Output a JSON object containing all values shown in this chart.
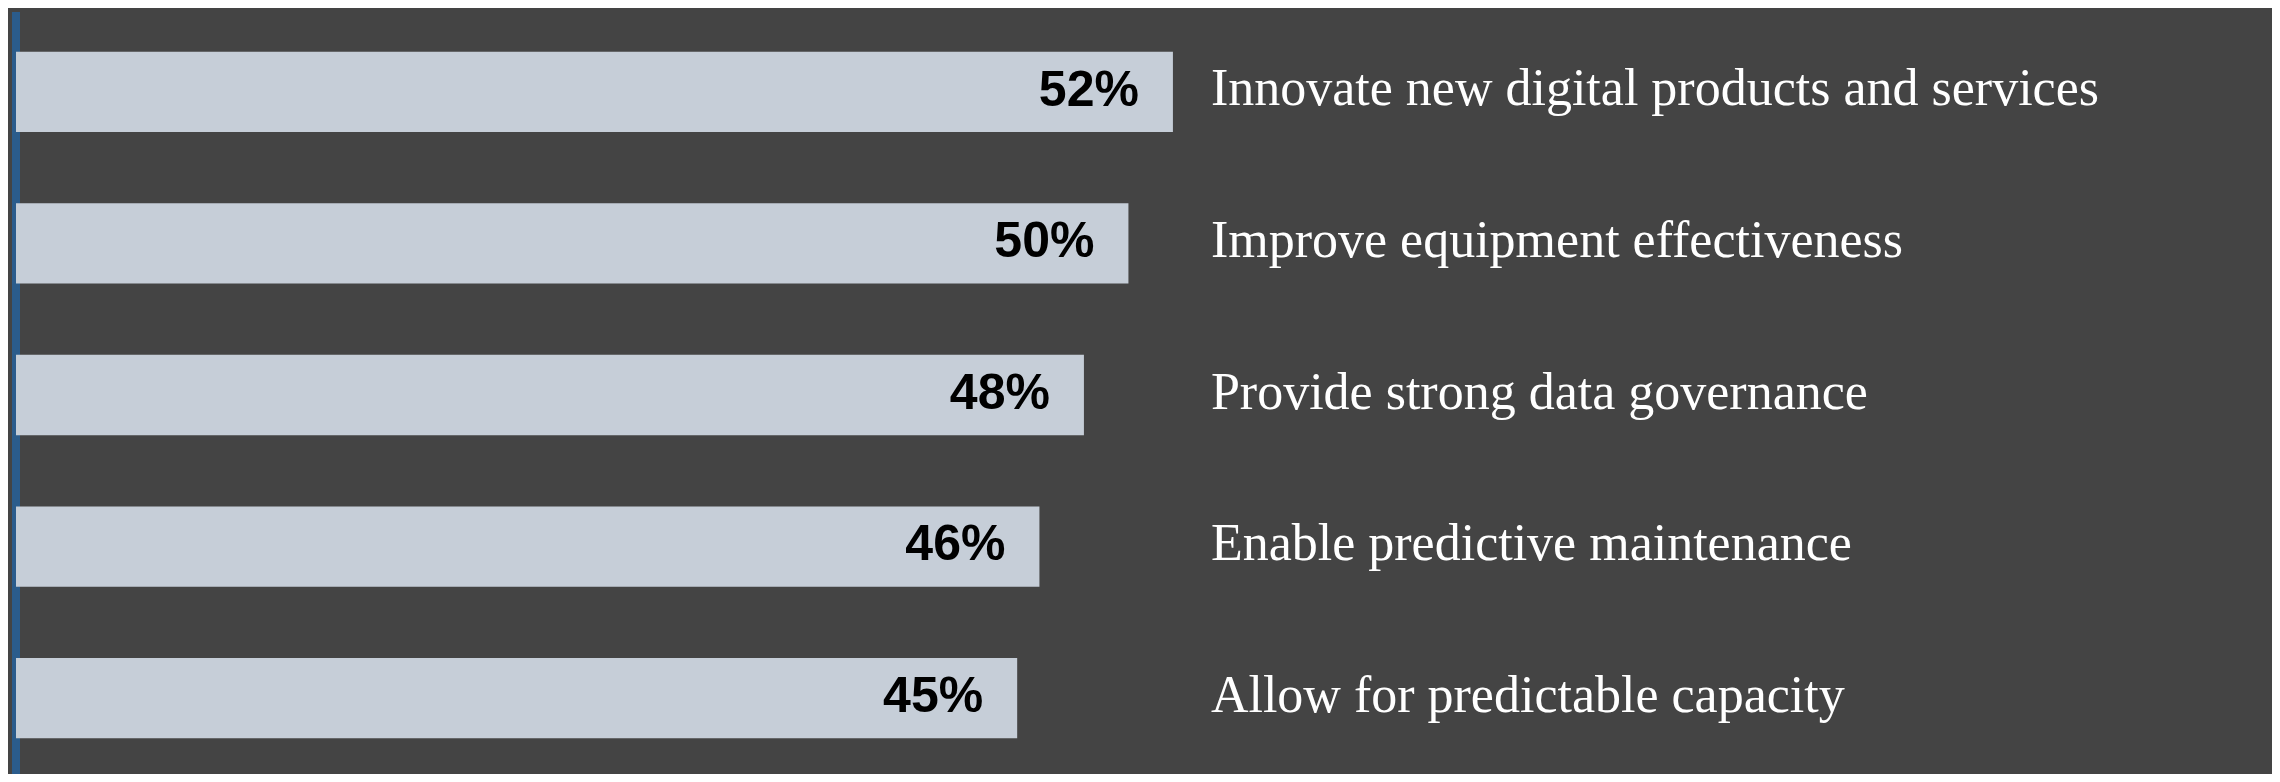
{
  "chart_data": {
    "type": "bar",
    "orientation": "horizontal",
    "categories": [
      "Innovate new digital products and services",
      "Improve equipment effectiveness",
      "Provide strong data governance",
      "Enable predictive maintenance",
      "Allow for predictable capacity"
    ],
    "values": [
      52,
      50,
      48,
      46,
      45
    ],
    "value_labels": [
      "52%",
      "50%",
      "48%",
      "46%",
      "45%"
    ],
    "color": "#c6ced8",
    "legend": false
  }
}
